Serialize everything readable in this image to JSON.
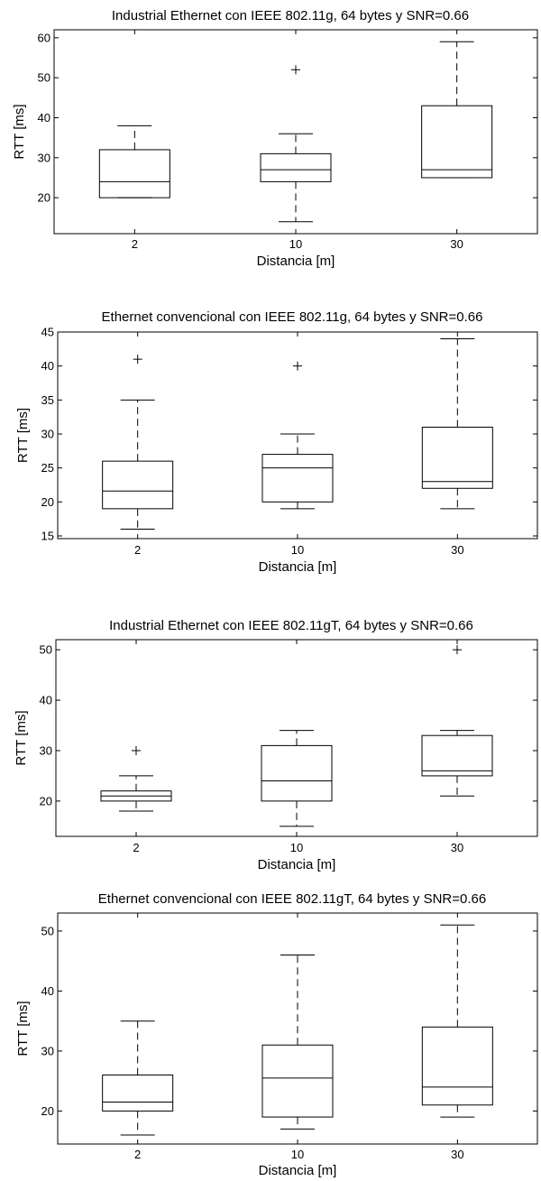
{
  "chart_data": [
    {
      "type": "boxplot",
      "title": "Industrial Ethernet con IEEE 802.11g, 64 bytes y SNR=0.66",
      "xlabel": "Distancia [m]",
      "ylabel": "RTT [ms]",
      "ylim": [
        11,
        62
      ],
      "yticks": [
        "20",
        "30",
        "40",
        "50",
        "60"
      ],
      "grid": false,
      "categories": [
        "2",
        "10",
        "30"
      ],
      "boxes": [
        {
          "whisker_low": 20,
          "q1": 20,
          "median": 24,
          "q3": 32,
          "whisker_high": 38,
          "outliers": []
        },
        {
          "whisker_low": 14,
          "q1": 24,
          "median": 27,
          "q3": 31,
          "whisker_high": 36,
          "outliers": [
            52
          ]
        },
        {
          "whisker_low": 25,
          "q1": 25,
          "median": 27,
          "q3": 43,
          "whisker_high": 59,
          "outliers": []
        }
      ]
    },
    {
      "type": "boxplot",
      "title": "Ethernet convencional con IEEE 802.11g, 64 bytes y SNR=0.66",
      "xlabel": "Distancia [m]",
      "ylabel": "RTT [ms]",
      "ylim": [
        14.6,
        45
      ],
      "yticks": [
        "15",
        "20",
        "25",
        "30",
        "35",
        "40",
        "45"
      ],
      "grid": false,
      "categories": [
        "2",
        "10",
        "30"
      ],
      "boxes": [
        {
          "whisker_low": 16,
          "q1": 19,
          "median": 21.6,
          "q3": 26,
          "whisker_high": 35,
          "outliers": [
            41
          ]
        },
        {
          "whisker_low": 19,
          "q1": 20,
          "median": 25,
          "q3": 27,
          "whisker_high": 30,
          "outliers": [
            40
          ]
        },
        {
          "whisker_low": 19,
          "q1": 22,
          "median": 23,
          "q3": 31,
          "whisker_high": 44,
          "outliers": []
        }
      ]
    },
    {
      "type": "boxplot",
      "title": "Industrial Ethernet con IEEE 802.11gT, 64 bytes y SNR=0.66",
      "xlabel": "Distancia [m]",
      "ylabel": "RTT [ms]",
      "ylim": [
        13,
        52
      ],
      "yticks": [
        "20",
        "30",
        "40",
        "50"
      ],
      "grid": false,
      "categories": [
        "2",
        "10",
        "30"
      ],
      "boxes": [
        {
          "whisker_low": 18,
          "q1": 20,
          "median": 21,
          "q3": 22,
          "whisker_high": 25,
          "outliers": [
            30
          ]
        },
        {
          "whisker_low": 15,
          "q1": 20,
          "median": 24,
          "q3": 31,
          "whisker_high": 34,
          "outliers": []
        },
        {
          "whisker_low": 21,
          "q1": 25,
          "median": 26,
          "q3": 33,
          "whisker_high": 34,
          "outliers": [
            50
          ]
        }
      ]
    },
    {
      "type": "boxplot",
      "title": "Ethernet convencional con IEEE 802.11gT, 64 bytes y SNR=0.66",
      "xlabel": "Distancia [m]",
      "ylabel": "RTT [ms]",
      "ylim": [
        14.5,
        53
      ],
      "yticks": [
        "20",
        "30",
        "40",
        "50"
      ],
      "grid": false,
      "categories": [
        "2",
        "10",
        "30"
      ],
      "boxes": [
        {
          "whisker_low": 16,
          "q1": 20,
          "median": 21.5,
          "q3": 26,
          "whisker_high": 35,
          "outliers": []
        },
        {
          "whisker_low": 17,
          "q1": 19,
          "median": 25.5,
          "q3": 31,
          "whisker_high": 46,
          "outliers": []
        },
        {
          "whisker_low": 19,
          "q1": 21,
          "median": 24,
          "q3": 34,
          "whisker_high": 51,
          "outliers": []
        }
      ]
    }
  ]
}
